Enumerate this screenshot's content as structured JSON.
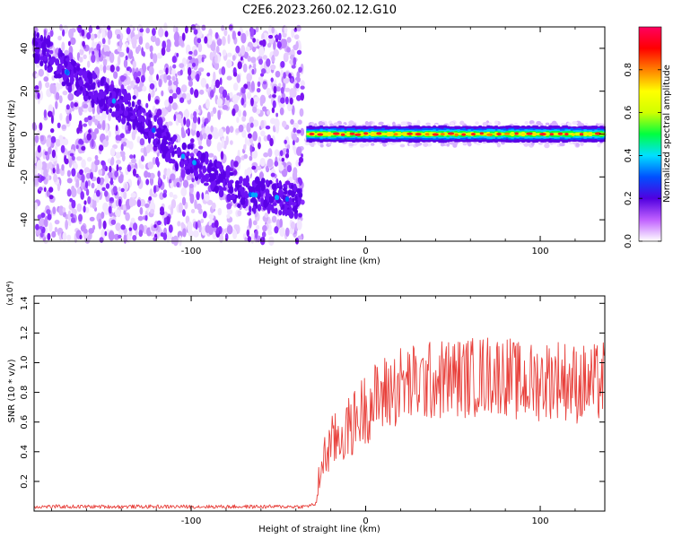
{
  "title": "C2E6.2023.260.02.12.G10",
  "chart_data": [
    {
      "type": "heatmap",
      "xlabel": "Height of straight line (km)",
      "ylabel": "Frequency (Hz)",
      "xlim": [
        -190,
        137
      ],
      "ylim": [
        -50,
        50
      ],
      "xticks": [
        -100,
        0,
        100
      ],
      "xtick_labels": [
        "-100",
        "0",
        "100"
      ],
      "yticks": [
        -40,
        -20,
        0,
        20,
        40
      ],
      "ytick_labels": [
        "-40",
        "-20",
        "0",
        "20",
        "40"
      ],
      "colorbar": {
        "label": "Normalized spectral amplitude",
        "range": [
          0,
          1
        ],
        "ticks": [
          0.0,
          0.2,
          0.4,
          0.6,
          0.8
        ],
        "tick_labels": [
          "0.0",
          "0.2",
          "0.4",
          "0.6",
          "0.8"
        ],
        "colors": [
          "#ffffff",
          "#c060ff",
          "#5000e0",
          "#0050ff",
          "#00e0ff",
          "#00ff40",
          "#d0ff00",
          "#ffff00",
          "#ff8000",
          "#ff0000",
          "#ff0060"
        ]
      },
      "noise_region_x": [
        -190,
        -34
      ],
      "drifting_line": [
        {
          "x": -190,
          "y": 42
        },
        {
          "x": -170,
          "y": 28
        },
        {
          "x": -150,
          "y": 18
        },
        {
          "x": -130,
          "y": 9
        },
        {
          "x": -110,
          "y": -8
        },
        {
          "x": -90,
          "y": -17
        },
        {
          "x": -70,
          "y": -28
        },
        {
          "x": -55,
          "y": -29
        },
        {
          "x": -40,
          "y": -31
        }
      ],
      "strong_line": {
        "x_start": -34,
        "x_end": 137,
        "y": 0,
        "peak_amplitude": 0.9
      }
    },
    {
      "type": "line",
      "xlabel": "Height of straight line (km)",
      "ylabel": "SNR (10 * v/v)",
      "y_multiplier": "(x10⁴)",
      "xlim": [
        -190,
        137
      ],
      "ylim": [
        0,
        1.45
      ],
      "xticks": [
        -100,
        0,
        100
      ],
      "xtick_labels": [
        "-100",
        "0",
        "100"
      ],
      "yticks": [
        0.2,
        0.4,
        0.6,
        0.8,
        1.0,
        1.2,
        1.4
      ],
      "ytick_labels": [
        "0.2",
        "0.4",
        "0.6",
        "0.8",
        "1.0",
        "1.2",
        "1.4"
      ],
      "series": [
        {
          "color": "#e8413c",
          "x": [
            -190,
            -170,
            -150,
            -130,
            -110,
            -90,
            -70,
            -50,
            -35,
            -28,
            -26,
            -20,
            -10,
            0,
            10,
            20,
            30,
            40,
            50,
            60,
            70,
            80,
            90,
            100,
            110,
            120,
            130,
            137
          ],
          "y": [
            0.03,
            0.03,
            0.03,
            0.03,
            0.03,
            0.03,
            0.03,
            0.03,
            0.03,
            0.05,
            0.3,
            0.45,
            0.55,
            0.7,
            0.78,
            0.85,
            0.86,
            0.88,
            0.9,
            0.9,
            0.92,
            0.92,
            0.85,
            0.88,
            0.9,
            0.86,
            0.85,
            0.88
          ]
        }
      ]
    }
  ]
}
